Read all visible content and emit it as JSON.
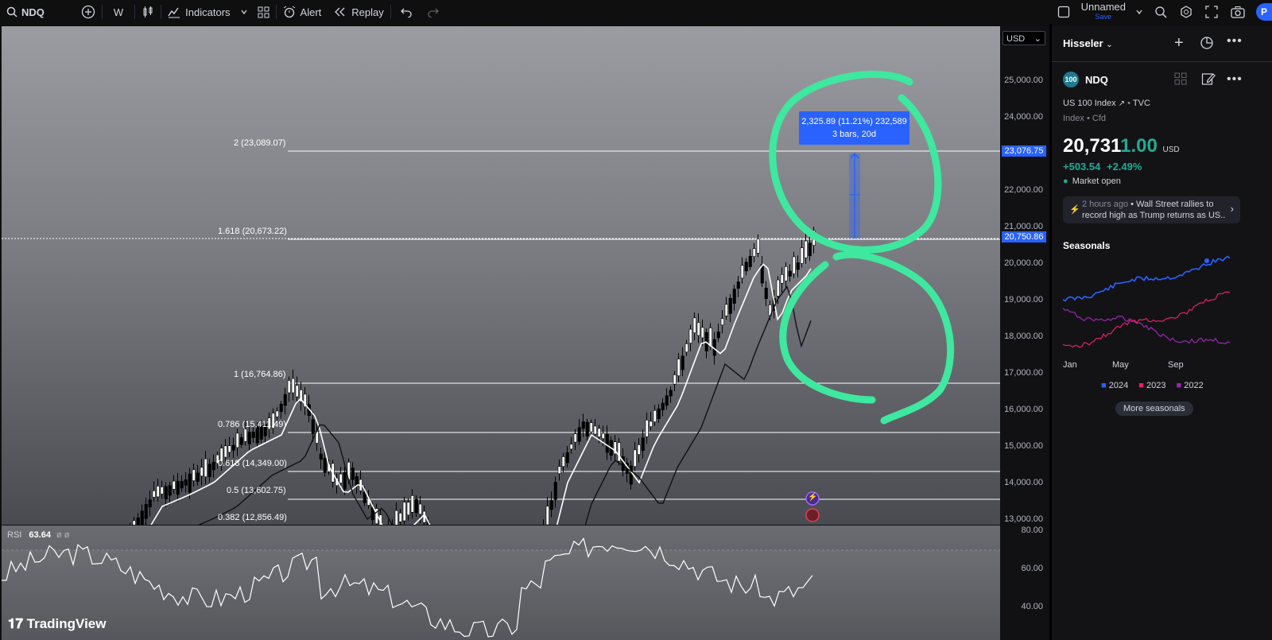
{
  "toolbar": {
    "symbol": "NDQ",
    "interval": "W",
    "indicators": "Indicators",
    "alert": "Alert",
    "replay": "Replay",
    "layout_name": "Unnamed",
    "layout_status": "Save",
    "avatar": "P"
  },
  "chart": {
    "currency": "USD",
    "price_ticks": [
      "25,000.00",
      "24,000.00",
      "22,000.00",
      "21,000.00",
      "20,000.00",
      "19,000.00",
      "18,000.00",
      "17,000.00",
      "16,000.00",
      "15,000.00",
      "14,000.00",
      "13,000.00"
    ],
    "price_tags": {
      "upper": "23,076.75",
      "current": "20,750.86"
    },
    "fib_levels": [
      {
        "label": "2 (23,089.07)"
      },
      {
        "label": "1.618 (20,673.22)"
      },
      {
        "label": "1 (16,764.86)"
      },
      {
        "label": "0.786 (15,411.49)"
      },
      {
        "label": "0.618 (14,349.00)"
      },
      {
        "label": "0.5 (13,602.75)"
      },
      {
        "label": "0.382 (12,856.49)"
      }
    ],
    "measure": {
      "line1": "2,325.89 (11.21%) 232,589",
      "line2": "3 bars, 20d"
    },
    "logo": "TradingView"
  },
  "rsi": {
    "label": "RSI",
    "value": "63.64",
    "ticks": [
      "80.00",
      "60.00",
      "40.00"
    ]
  },
  "panel": {
    "title": "Hisseler",
    "symbol_badge": "100",
    "symbol": "NDQ",
    "name": "US 100 Index",
    "exchange": "TVC",
    "type": "Index",
    "subtype": "Cfd",
    "price_main": "20,731",
    "price_tail": "1.00",
    "currency": "USD",
    "change": "+503.54",
    "change_pct": "+2.49%",
    "market_status": "Market open",
    "news_time": "2 hours ago",
    "news_text_1": "Wall Street rallies to",
    "news_text_2": "record high as Trump returns as US...",
    "seasonals_title": "Seasonals",
    "months": [
      "Jan",
      "May",
      "Sep"
    ],
    "legend": [
      {
        "name": "2024",
        "color": "#2962ff"
      },
      {
        "name": "2023",
        "color": "#e91e63"
      },
      {
        "name": "2022",
        "color": "#9c27b0"
      }
    ],
    "more_button": "More seasonals"
  },
  "colors": {
    "accent": "#2962ff",
    "positive": "#22ab94",
    "annotation": "#3ee89f"
  }
}
